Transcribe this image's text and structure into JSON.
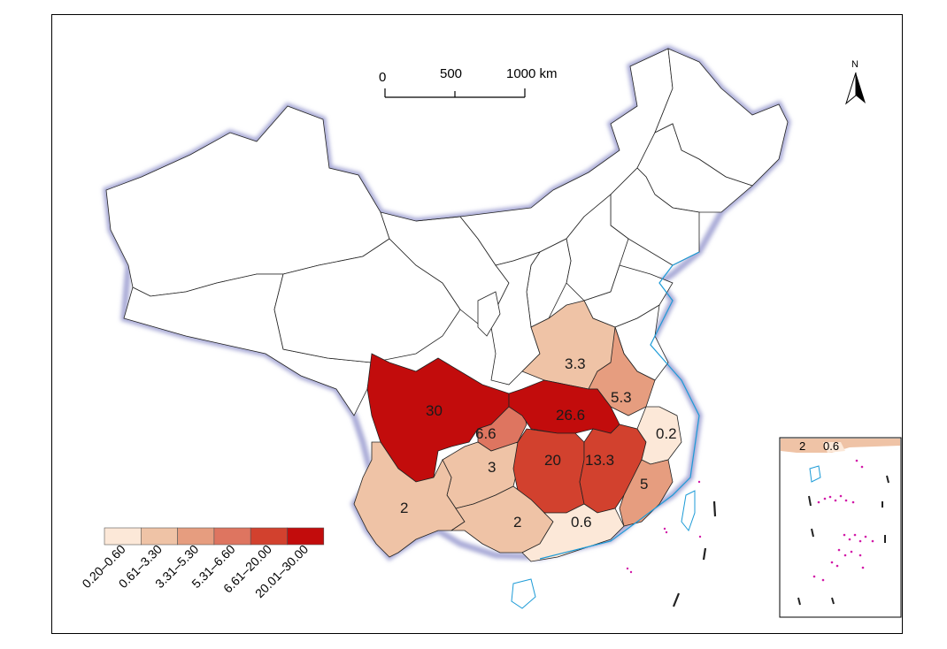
{
  "scale_bar": {
    "labels": [
      "0",
      "500",
      "1000 km"
    ]
  },
  "north_arrow": {
    "label": "N"
  },
  "legend": {
    "classes": [
      {
        "label": "0.20–0.60",
        "color": "#fce8d8"
      },
      {
        "label": "0.61–3.30",
        "color": "#efc3a6"
      },
      {
        "label": "3.31–5.30",
        "color": "#e69d7f"
      },
      {
        "label": "5.31–6.60",
        "color": "#de7560"
      },
      {
        "label": "6.61–20.00",
        "color": "#d2412e"
      },
      {
        "label": "20.01–30.00",
        "color": "#c20c0c"
      }
    ]
  },
  "regions": [
    {
      "id": "sichuan",
      "value": "30",
      "color": "#c20c0c"
    },
    {
      "id": "hubei",
      "value": "26.6",
      "color": "#c20c0c"
    },
    {
      "id": "hunan",
      "value": "20",
      "color": "#d2412e"
    },
    {
      "id": "jiangxi",
      "value": "13.3",
      "color": "#d2412e"
    },
    {
      "id": "chongqing",
      "value": "6.6",
      "color": "#de7560"
    },
    {
      "id": "anhui",
      "value": "5.3",
      "color": "#e69d7f"
    },
    {
      "id": "fujian-south",
      "value": "5",
      "color": "#e69d7f"
    },
    {
      "id": "henan",
      "value": "3.3",
      "color": "#efc3a6"
    },
    {
      "id": "guizhou",
      "value": "3",
      "color": "#efc3a6"
    },
    {
      "id": "yunnan",
      "value": "2",
      "color": "#efc3a6"
    },
    {
      "id": "guangxi",
      "value": "2",
      "color": "#efc3a6"
    },
    {
      "id": "guangdong",
      "value": "0.6",
      "color": "#fce8d8"
    },
    {
      "id": "zhejiang",
      "value": "0.2",
      "color": "#fce8d8"
    }
  ],
  "inset": {
    "labels": [
      "2",
      "0.6"
    ]
  }
}
